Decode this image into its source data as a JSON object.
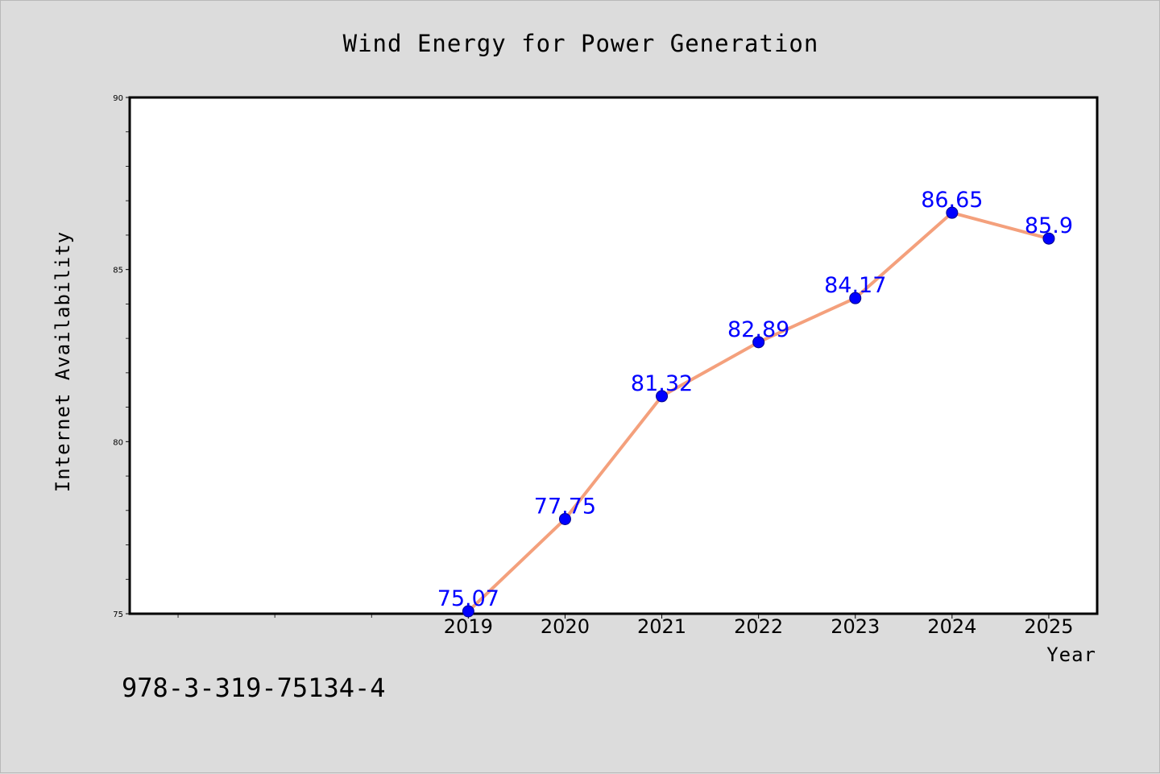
{
  "footer_code": "978-3-319-75134-4",
  "colors": {
    "figure_bg": "#dcdcdc",
    "plot_bg": "#ffffff",
    "line": "#f4a07c",
    "marker": "#0000ff",
    "data_label": "#0000ff"
  },
  "chart_data": {
    "type": "line",
    "title": "Wind Energy for Power Generation",
    "xlabel": "Year",
    "ylabel": "Internet Availability",
    "categories": [
      "2019",
      "2020",
      "2021",
      "2022",
      "2023",
      "2024",
      "2025"
    ],
    "series": [
      {
        "values": [
          75.07,
          77.75,
          81.32,
          82.89,
          84.17,
          86.65,
          85.9
        ]
      }
    ],
    "data_labels": [
      "75.07",
      "77.75",
      "81.32",
      "82.89",
      "84.17",
      "86.65",
      "85.9"
    ],
    "xlim": [
      2015.5,
      2025.5
    ],
    "ylim": [
      75,
      90
    ],
    "yticks": [
      "75",
      "80",
      "85",
      "90"
    ],
    "grid": false,
    "legend": "none"
  }
}
